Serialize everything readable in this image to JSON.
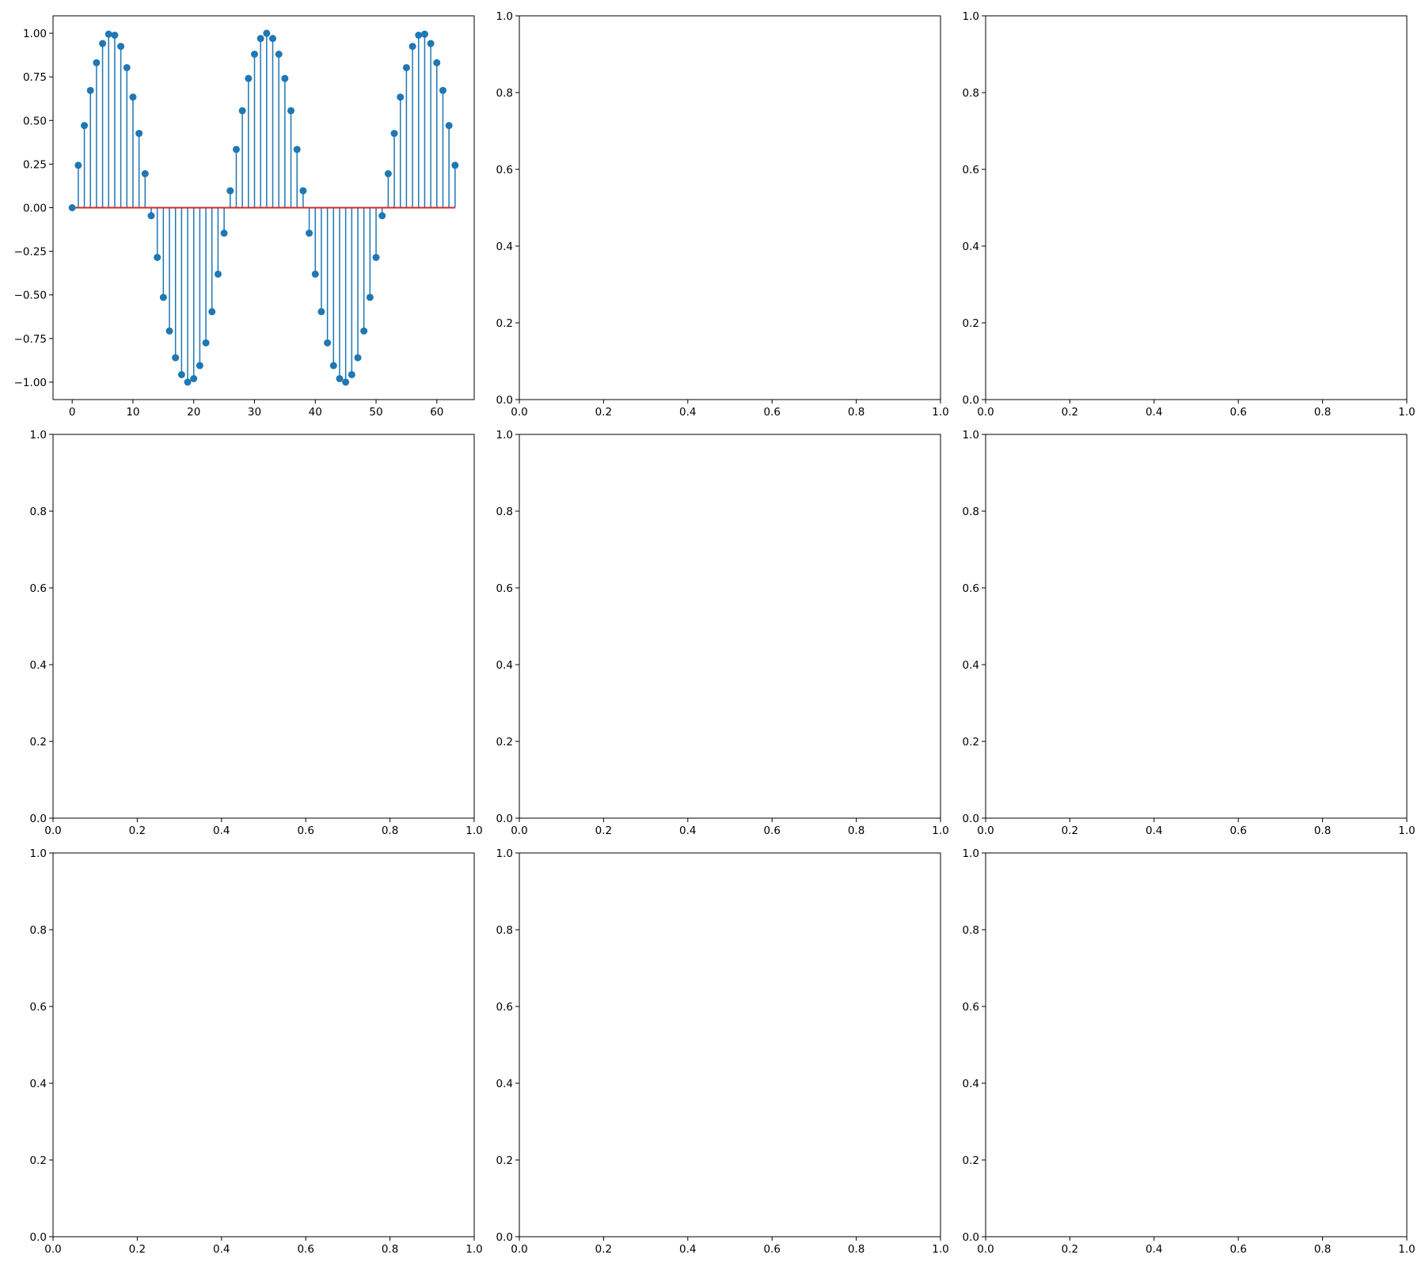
{
  "colors": {
    "stem": "#1f77b4",
    "baseline": "#d62728",
    "axis": "#000000",
    "background": "#ffffff"
  },
  "chart_data": [
    {
      "type": "stem",
      "title": "",
      "xlabel": "",
      "ylabel": "",
      "x": [
        0,
        1,
        2,
        3,
        4,
        5,
        6,
        7,
        8,
        9,
        10,
        11,
        12,
        13,
        14,
        15,
        16,
        17,
        18,
        19,
        20,
        21,
        22,
        23,
        24,
        25,
        26,
        27,
        28,
        29,
        30,
        31,
        32,
        33,
        34,
        35,
        36,
        37,
        38,
        39,
        40,
        41,
        42,
        43,
        44,
        45,
        46,
        47,
        48,
        49,
        50,
        51,
        52,
        53,
        54,
        55,
        56,
        57,
        58,
        59,
        60,
        61,
        62,
        63
      ],
      "values": [
        0.0,
        0.243,
        0.471,
        0.672,
        0.831,
        0.941,
        0.995,
        0.989,
        0.925,
        0.803,
        0.634,
        0.426,
        0.195,
        -0.046,
        -0.285,
        -0.514,
        -0.707,
        -0.86,
        -0.957,
        -1.0,
        -0.98,
        -0.905,
        -0.775,
        -0.596,
        -0.381,
        -0.146,
        0.097,
        0.334,
        0.556,
        0.741,
        0.88,
        0.97,
        1.0,
        0.97,
        0.88,
        0.741,
        0.556,
        0.334,
        0.097,
        -0.146,
        -0.381,
        -0.596,
        -0.775,
        -0.905,
        -0.98,
        -1.0,
        -0.957,
        -0.86,
        -0.707,
        -0.514,
        -0.285,
        -0.046,
        0.195,
        0.426,
        0.634,
        0.803,
        0.925,
        0.989,
        0.995,
        0.941,
        0.831,
        0.672,
        0.471,
        0.243
      ],
      "baseline": 0,
      "xlim": [
        -3.15,
        66.15
      ],
      "ylim": [
        -1.1,
        1.1
      ],
      "xticks": [
        0,
        10,
        20,
        30,
        40,
        50,
        60
      ],
      "xtick_labels": [
        "0",
        "10",
        "20",
        "30",
        "40",
        "50",
        "60"
      ],
      "yticks": [
        -1.0,
        -0.75,
        -0.5,
        -0.25,
        0.0,
        0.25,
        0.5,
        0.75,
        1.0
      ],
      "ytick_labels": [
        "−1.00",
        "−0.75",
        "−0.50",
        "−0.25",
        "0.00",
        "0.25",
        "0.50",
        "0.75",
        "1.00"
      ]
    },
    {
      "type": "empty",
      "xlim": [
        0,
        1
      ],
      "ylim": [
        0,
        1
      ],
      "xticks": [
        0,
        0.2,
        0.4,
        0.6,
        0.8,
        1.0
      ],
      "xtick_labels": [
        "0.0",
        "0.2",
        "0.4",
        "0.6",
        "0.8",
        "1.0"
      ],
      "yticks": [
        0,
        0.2,
        0.4,
        0.6,
        0.8,
        1.0
      ],
      "ytick_labels": [
        "0.0",
        "0.2",
        "0.4",
        "0.6",
        "0.8",
        "1.0"
      ]
    },
    {
      "type": "empty",
      "xlim": [
        0,
        1
      ],
      "ylim": [
        0,
        1
      ],
      "xticks": [
        0,
        0.2,
        0.4,
        0.6,
        0.8,
        1.0
      ],
      "xtick_labels": [
        "0.0",
        "0.2",
        "0.4",
        "0.6",
        "0.8",
        "1.0"
      ],
      "yticks": [
        0,
        0.2,
        0.4,
        0.6,
        0.8,
        1.0
      ],
      "ytick_labels": [
        "0.0",
        "0.2",
        "0.4",
        "0.6",
        "0.8",
        "1.0"
      ]
    },
    {
      "type": "empty",
      "xlim": [
        0,
        1
      ],
      "ylim": [
        0,
        1
      ],
      "xticks": [
        0,
        0.2,
        0.4,
        0.6,
        0.8,
        1.0
      ],
      "xtick_labels": [
        "0.0",
        "0.2",
        "0.4",
        "0.6",
        "0.8",
        "1.0"
      ],
      "yticks": [
        0,
        0.2,
        0.4,
        0.6,
        0.8,
        1.0
      ],
      "ytick_labels": [
        "0.0",
        "0.2",
        "0.4",
        "0.6",
        "0.8",
        "1.0"
      ]
    },
    {
      "type": "empty",
      "xlim": [
        0,
        1
      ],
      "ylim": [
        0,
        1
      ],
      "xticks": [
        0,
        0.2,
        0.4,
        0.6,
        0.8,
        1.0
      ],
      "xtick_labels": [
        "0.0",
        "0.2",
        "0.4",
        "0.6",
        "0.8",
        "1.0"
      ],
      "yticks": [
        0,
        0.2,
        0.4,
        0.6,
        0.8,
        1.0
      ],
      "ytick_labels": [
        "0.0",
        "0.2",
        "0.4",
        "0.6",
        "0.8",
        "1.0"
      ]
    },
    {
      "type": "empty",
      "xlim": [
        0,
        1
      ],
      "ylim": [
        0,
        1
      ],
      "xticks": [
        0,
        0.2,
        0.4,
        0.6,
        0.8,
        1.0
      ],
      "xtick_labels": [
        "0.0",
        "0.2",
        "0.4",
        "0.6",
        "0.8",
        "1.0"
      ],
      "yticks": [
        0,
        0.2,
        0.4,
        0.6,
        0.8,
        1.0
      ],
      "ytick_labels": [
        "0.0",
        "0.2",
        "0.4",
        "0.6",
        "0.8",
        "1.0"
      ]
    },
    {
      "type": "empty",
      "xlim": [
        0,
        1
      ],
      "ylim": [
        0,
        1
      ],
      "xticks": [
        0,
        0.2,
        0.4,
        0.6,
        0.8,
        1.0
      ],
      "xtick_labels": [
        "0.0",
        "0.2",
        "0.4",
        "0.6",
        "0.8",
        "1.0"
      ],
      "yticks": [
        0,
        0.2,
        0.4,
        0.6,
        0.8,
        1.0
      ],
      "ytick_labels": [
        "0.0",
        "0.2",
        "0.4",
        "0.6",
        "0.8",
        "1.0"
      ]
    },
    {
      "type": "empty",
      "xlim": [
        0,
        1
      ],
      "ylim": [
        0,
        1
      ],
      "xticks": [
        0,
        0.2,
        0.4,
        0.6,
        0.8,
        1.0
      ],
      "xtick_labels": [
        "0.0",
        "0.2",
        "0.4",
        "0.6",
        "0.8",
        "1.0"
      ],
      "yticks": [
        0,
        0.2,
        0.4,
        0.6,
        0.8,
        1.0
      ],
      "ytick_labels": [
        "0.0",
        "0.2",
        "0.4",
        "0.6",
        "0.8",
        "1.0"
      ]
    },
    {
      "type": "empty",
      "xlim": [
        0,
        1
      ],
      "ylim": [
        0,
        1
      ],
      "xticks": [
        0,
        0.2,
        0.4,
        0.6,
        0.8,
        1.0
      ],
      "xtick_labels": [
        "0.0",
        "0.2",
        "0.4",
        "0.6",
        "0.8",
        "1.0"
      ],
      "yticks": [
        0,
        0.2,
        0.4,
        0.6,
        0.8,
        1.0
      ],
      "ytick_labels": [
        "0.0",
        "0.2",
        "0.4",
        "0.6",
        "0.8",
        "1.0"
      ]
    }
  ]
}
